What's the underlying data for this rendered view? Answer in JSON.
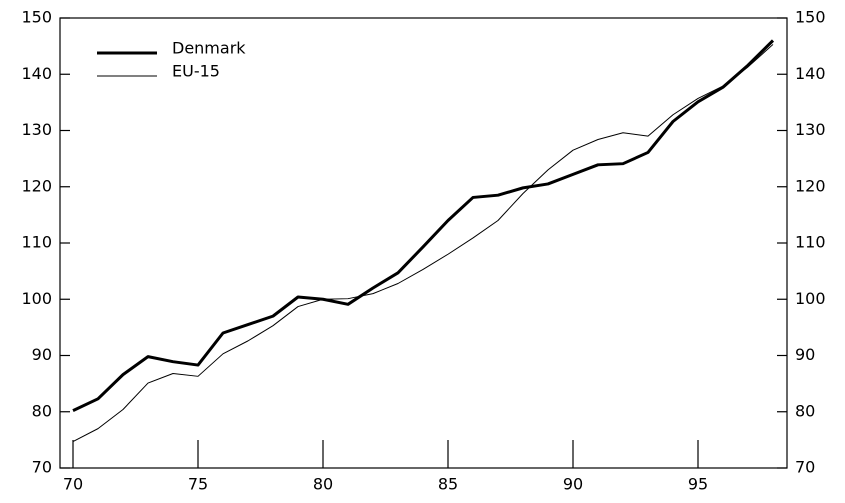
{
  "chart_data": {
    "type": "line",
    "x": [
      70,
      71,
      72,
      73,
      74,
      75,
      76,
      77,
      78,
      79,
      80,
      81,
      82,
      83,
      84,
      85,
      86,
      87,
      88,
      89,
      90,
      91,
      92,
      93,
      94,
      95,
      96,
      97,
      98
    ],
    "series": [
      {
        "name": "Denmark",
        "color": "#000000",
        "width": 3,
        "values": [
          80.2,
          82.3,
          86.6,
          89.8,
          88.9,
          88.3,
          94.0,
          95.5,
          97.0,
          100.4,
          100.0,
          99.1,
          102.0,
          104.7,
          109.3,
          114.0,
          118.1,
          118.5,
          119.8,
          120.5,
          122.2,
          123.9,
          124.1,
          126.1,
          131.6,
          135.1,
          137.7,
          141.6,
          146.0
        ]
      },
      {
        "name": "EU-15",
        "color": "#000000",
        "width": 1,
        "values": [
          74.7,
          77.0,
          80.4,
          85.1,
          86.8,
          86.3,
          90.3,
          92.6,
          95.3,
          98.7,
          100.0,
          100.1,
          101.0,
          102.8,
          105.3,
          108.0,
          110.9,
          114.0,
          118.8,
          123.0,
          126.5,
          128.4,
          129.6,
          129.0,
          132.8,
          135.7,
          137.9,
          141.3,
          145.3
        ]
      }
    ],
    "xlim": [
      70,
      98
    ],
    "xticks": [
      70,
      75,
      80,
      85,
      90,
      95
    ],
    "ylim": [
      70,
      150
    ],
    "yticks": [
      70,
      80,
      90,
      100,
      110,
      120,
      130,
      140,
      150
    ],
    "y2lim": [
      70,
      150
    ],
    "y2ticks": [
      70,
      80,
      90,
      100,
      110,
      120,
      130,
      140,
      150
    ],
    "legend": "upper left"
  }
}
